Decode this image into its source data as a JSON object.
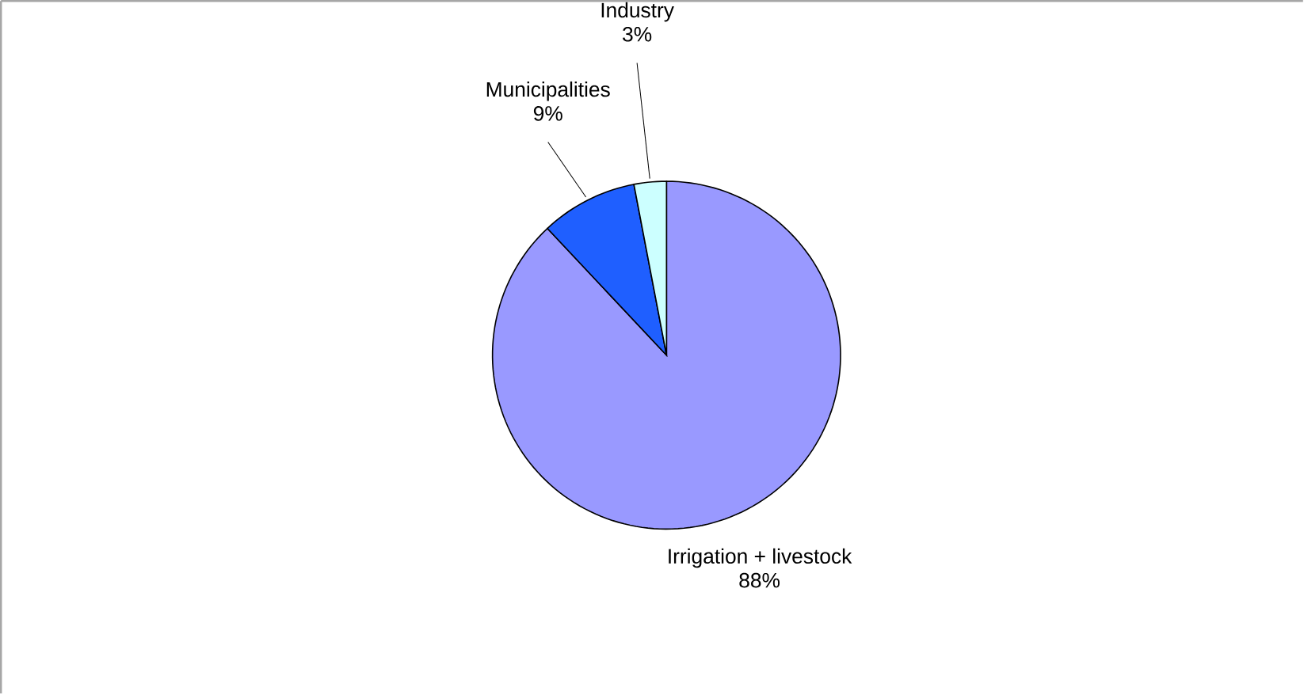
{
  "chart_data": {
    "type": "pie",
    "categories": [
      "Irrigation + livestock",
      "Municipalities",
      "Industry"
    ],
    "values": [
      88,
      9,
      3
    ],
    "colors": [
      "#9999ff",
      "#1f5fff",
      "#ccffff"
    ],
    "value_labels": [
      "88%",
      "9%",
      "3%"
    ]
  }
}
